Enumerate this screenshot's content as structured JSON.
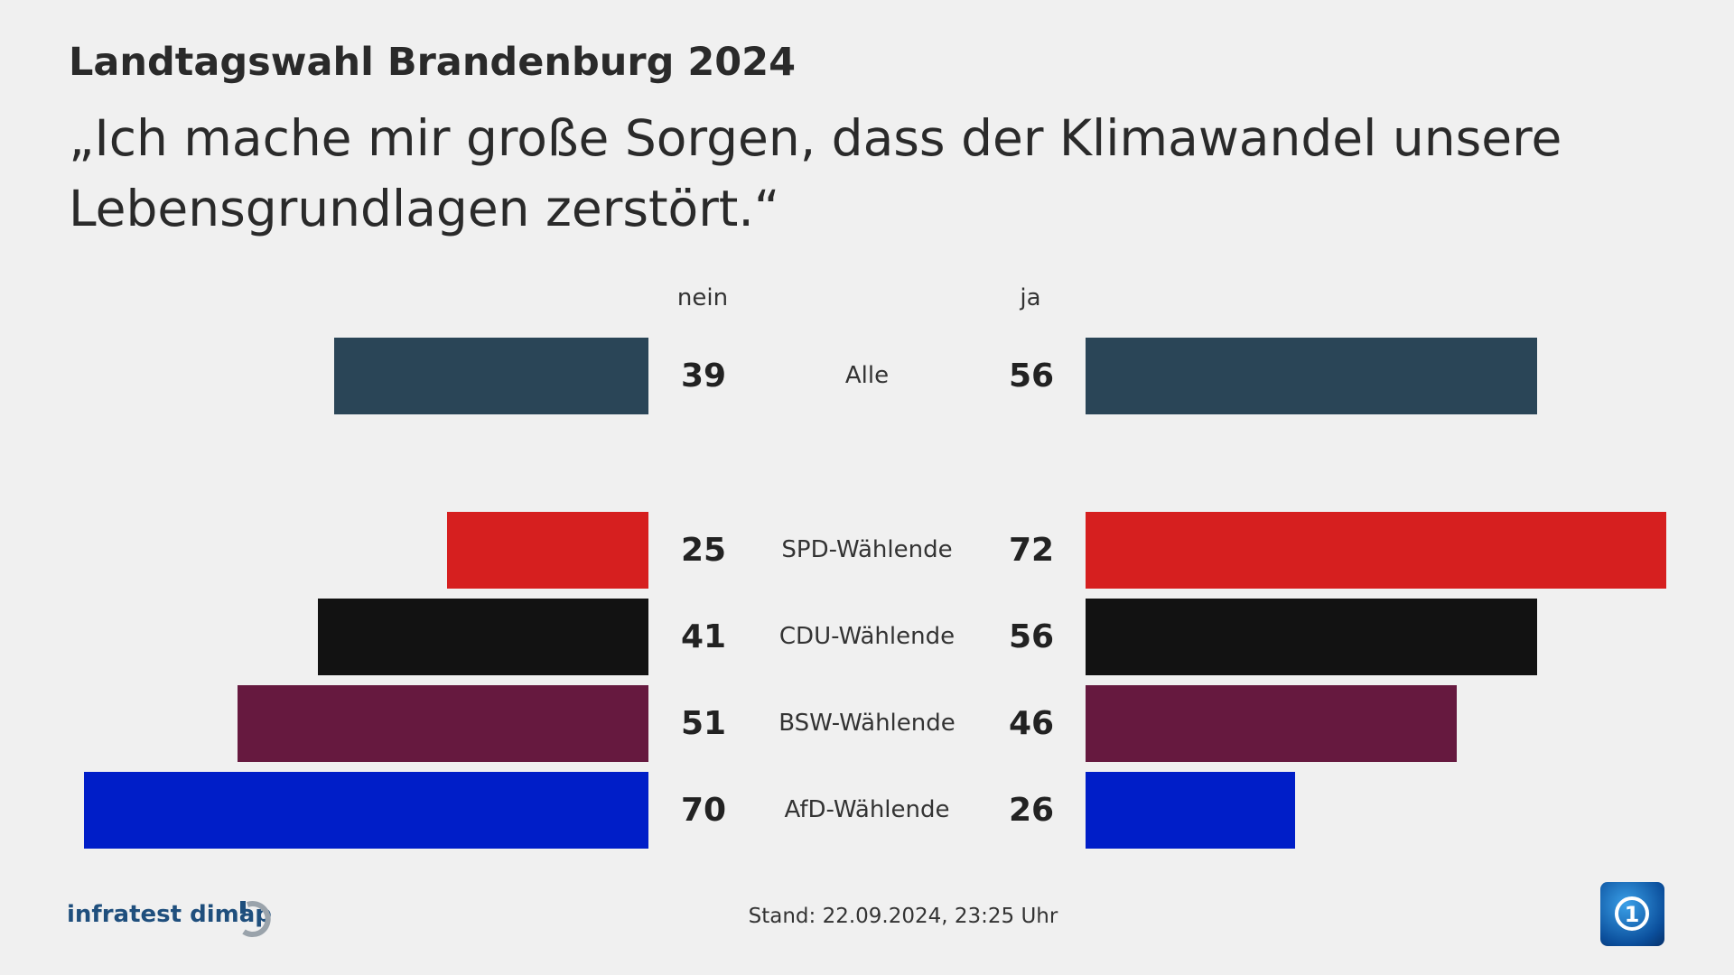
{
  "header": {
    "title": "Landtagswahl Brandenburg 2024",
    "question": "„Ich mache mir große Sorgen, dass der Klimawandel unsere Lebensgrundlagen zerstört.“"
  },
  "chart_data": {
    "type": "bar",
    "orientation": "diverging-horizontal",
    "left_label": "nein",
    "right_label": "ja",
    "categories": [
      "Alle",
      "SPD-Wählende",
      "CDU-Wählende",
      "BSW-Wählende",
      "AfD-Wählende"
    ],
    "series": [
      {
        "name": "nein",
        "values": [
          39,
          25,
          41,
          51,
          70
        ]
      },
      {
        "name": "ja",
        "values": [
          56,
          72,
          56,
          46,
          26
        ]
      }
    ],
    "colors": [
      "#2a4557",
      "#d61f1f",
      "#121212",
      "#66193f",
      "#001ec8"
    ],
    "grid": false
  },
  "footer": {
    "brand": "infratest dimap",
    "stand": "Stand:  22.09.2024, 23:25 Uhr",
    "logo": "ARD Das Erste logo"
  }
}
